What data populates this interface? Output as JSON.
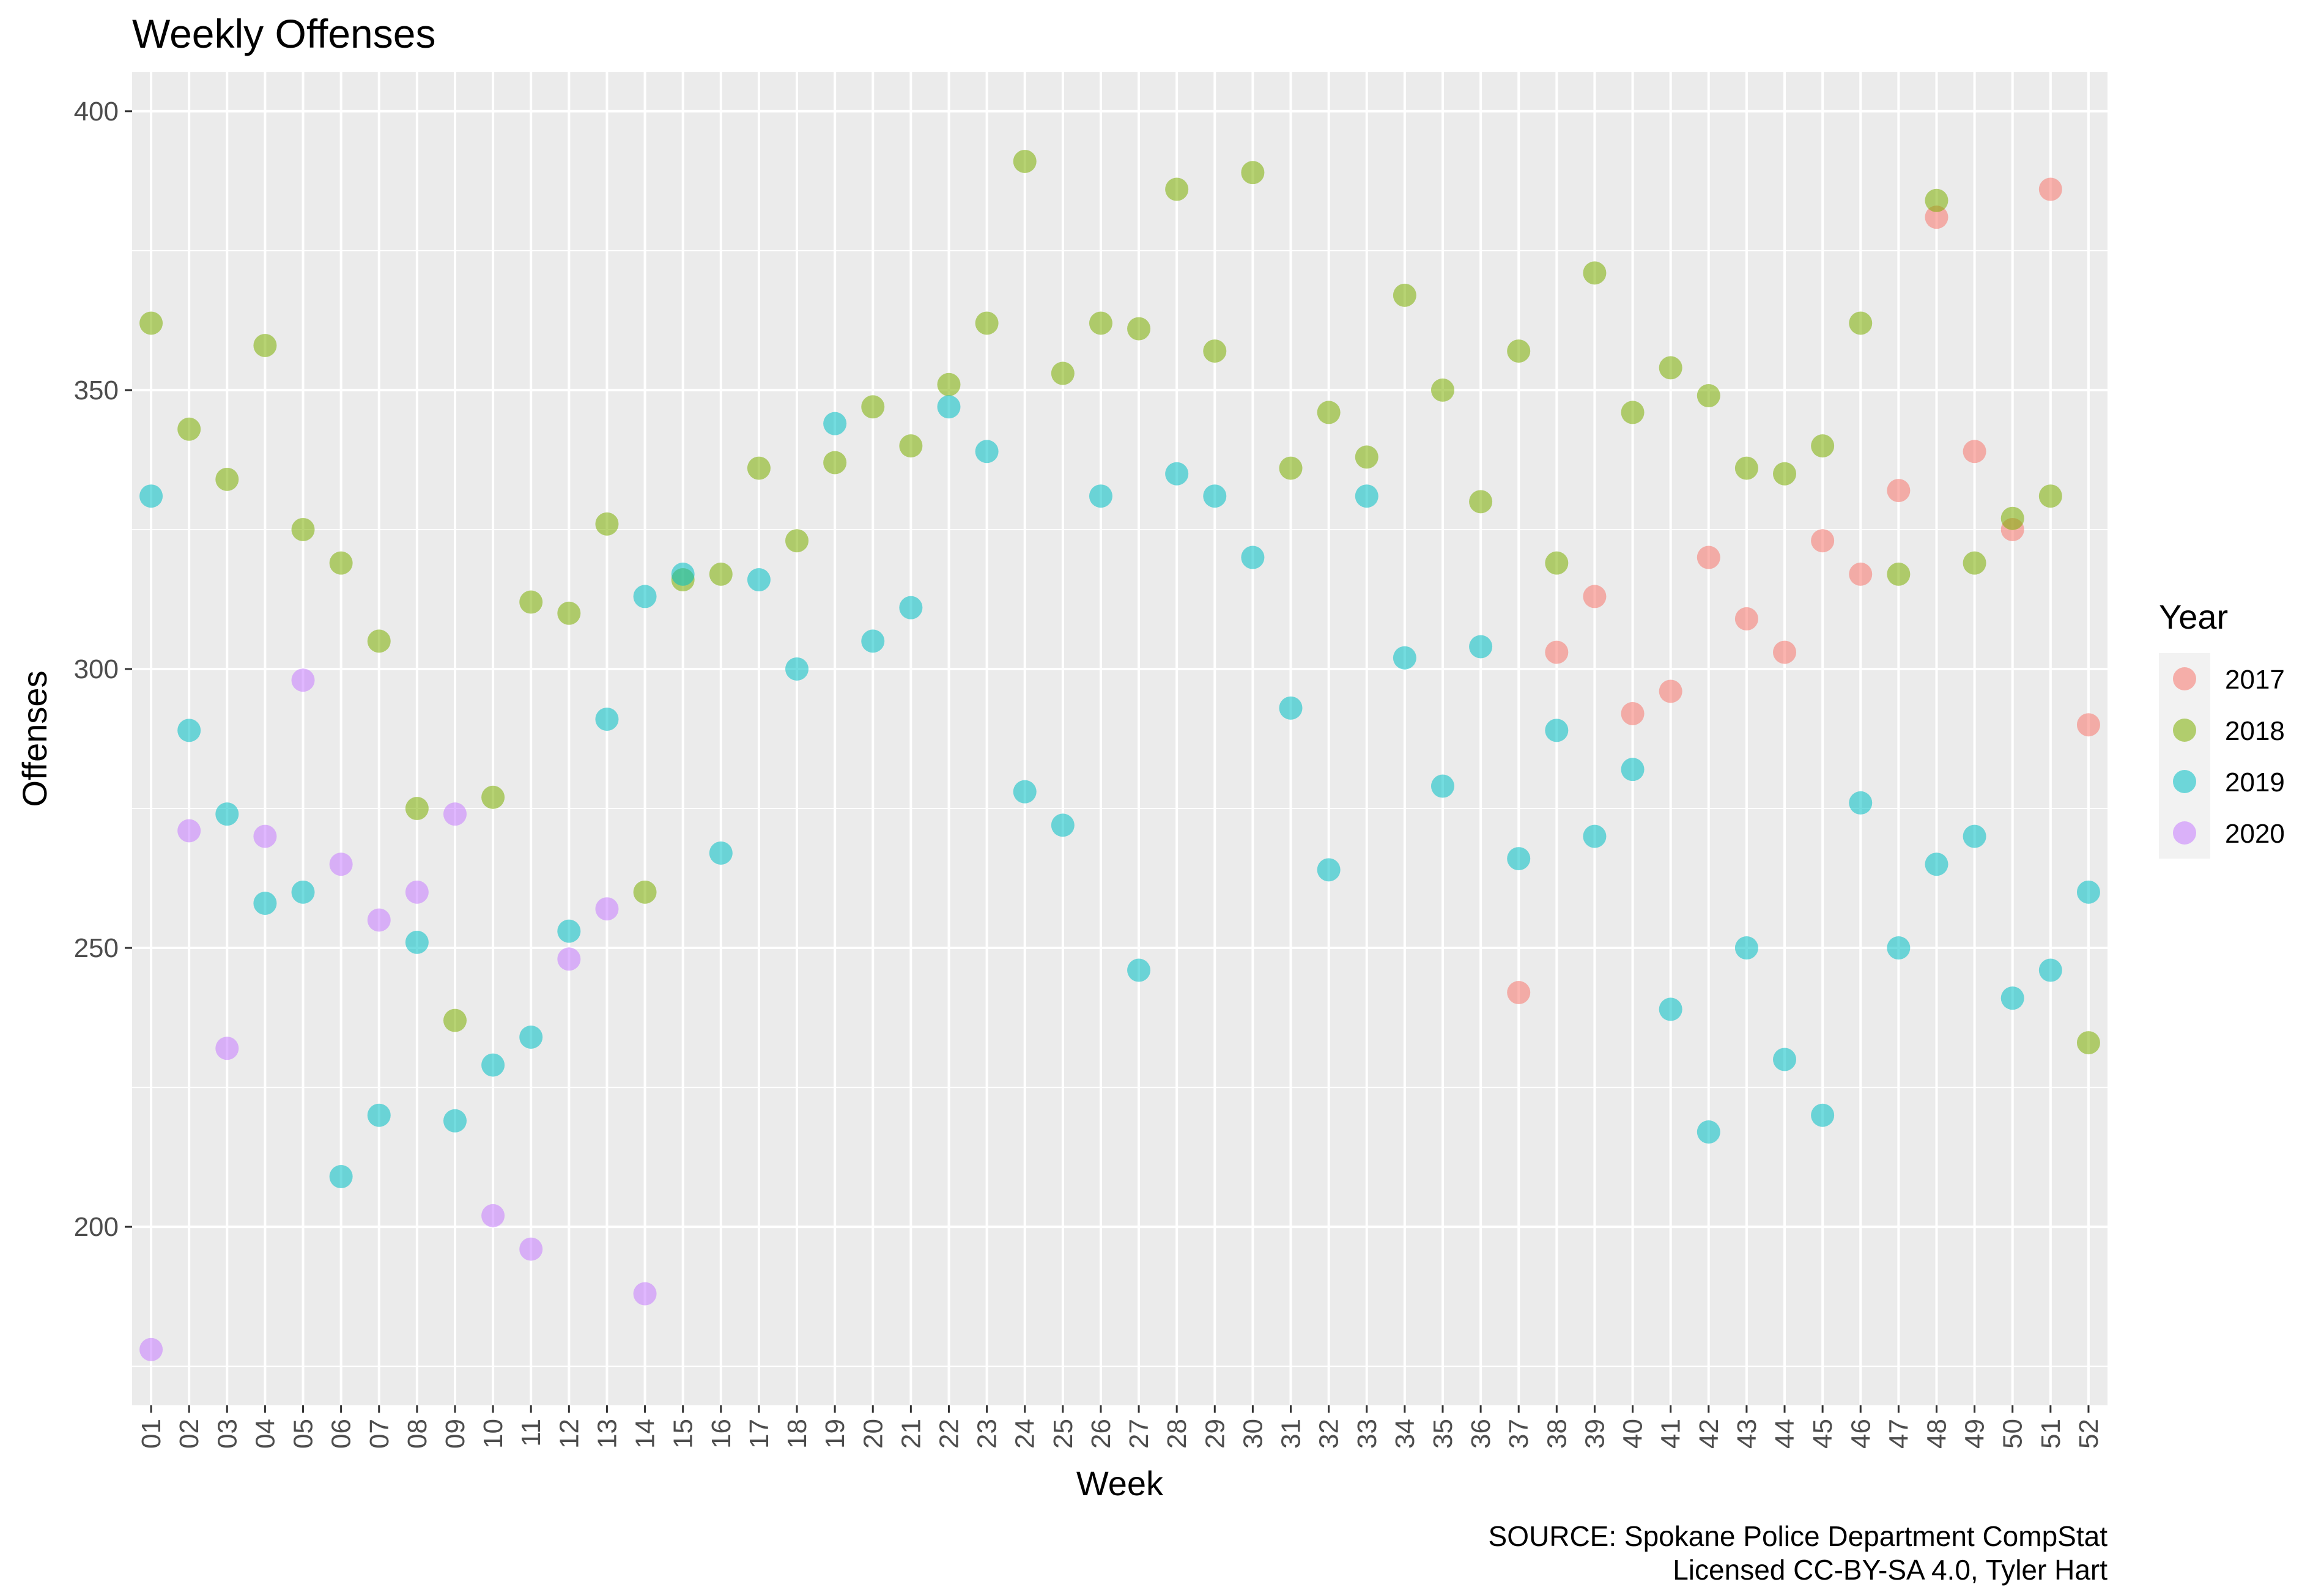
{
  "chart_data": {
    "type": "scatter",
    "title": "Weekly Offenses",
    "xlabel": "Week",
    "ylabel": "Offenses",
    "categories": [
      "01",
      "02",
      "03",
      "04",
      "05",
      "06",
      "07",
      "08",
      "09",
      "10",
      "11",
      "12",
      "13",
      "14",
      "15",
      "16",
      "17",
      "18",
      "19",
      "20",
      "21",
      "22",
      "23",
      "24",
      "25",
      "26",
      "27",
      "28",
      "29",
      "30",
      "31",
      "32",
      "33",
      "34",
      "35",
      "36",
      "37",
      "38",
      "39",
      "40",
      "41",
      "42",
      "43",
      "44",
      "45",
      "46",
      "47",
      "48",
      "49",
      "50",
      "51",
      "52"
    ],
    "ylim": [
      168,
      407
    ],
    "yticks": [
      200,
      250,
      300,
      350,
      400
    ],
    "grid": true,
    "legend_title": "Year",
    "legend_position": "right",
    "series": [
      {
        "name": "2017",
        "color": "#F8766D",
        "values": [
          null,
          null,
          null,
          null,
          null,
          null,
          null,
          null,
          null,
          null,
          null,
          null,
          null,
          null,
          null,
          null,
          null,
          null,
          null,
          null,
          null,
          null,
          null,
          null,
          null,
          null,
          null,
          null,
          null,
          null,
          null,
          null,
          null,
          null,
          null,
          null,
          242,
          303,
          313,
          292,
          296,
          320,
          309,
          303,
          323,
          317,
          332,
          381,
          339,
          325,
          386,
          290
        ]
      },
      {
        "name": "2018",
        "color": "#7CAE00",
        "values": [
          362,
          343,
          334,
          358,
          325,
          319,
          305,
          275,
          237,
          277,
          312,
          310,
          326,
          260,
          316,
          317,
          336,
          323,
          337,
          347,
          340,
          351,
          362,
          391,
          353,
          362,
          361,
          386,
          357,
          389,
          336,
          346,
          338,
          367,
          350,
          330,
          357,
          319,
          371,
          346,
          354,
          349,
          336,
          335,
          340,
          362,
          317,
          384,
          319,
          327,
          331,
          233
        ]
      },
      {
        "name": "2019",
        "color": "#00BFC4",
        "values": [
          331,
          289,
          274,
          258,
          260,
          209,
          220,
          251,
          219,
          229,
          234,
          253,
          291,
          313,
          317,
          267,
          316,
          300,
          344,
          305,
          311,
          347,
          339,
          278,
          272,
          331,
          246,
          335,
          331,
          320,
          293,
          264,
          331,
          302,
          279,
          304,
          266,
          289,
          270,
          282,
          239,
          217,
          250,
          230,
          220,
          276,
          250,
          265,
          270,
          241,
          246,
          260
        ]
      },
      {
        "name": "2020",
        "color": "#C77CFF",
        "values": [
          178,
          271,
          232,
          270,
          298,
          265,
          255,
          260,
          274,
          202,
          196,
          248,
          257,
          188,
          null,
          null,
          null,
          null,
          null,
          null,
          null,
          null,
          null,
          null,
          null,
          null,
          null,
          null,
          null,
          null,
          null,
          null,
          null,
          null,
          null,
          null,
          null,
          null,
          null,
          null,
          null,
          null,
          null,
          null,
          null,
          null,
          null,
          null,
          null,
          null,
          null,
          null
        ]
      }
    ],
    "caption": [
      "SOURCE: Spokane Police Department CompStat",
      "Licensed CC-BY-SA 4.0, Tyler Hart"
    ]
  }
}
